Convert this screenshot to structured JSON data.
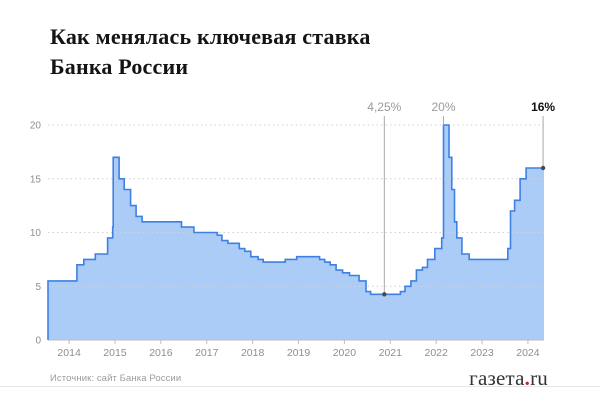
{
  "header": {
    "title_line1": "Как менялась ключевая ставка",
    "title_line2": "Банка России"
  },
  "footer": {
    "source": "Источник: сайт Банка России",
    "logo_name": "газета",
    "logo_dot": ".",
    "logo_domain": "ru"
  },
  "colors": {
    "line_blue": "#3f80e4",
    "fill_blue": "#aaccf7",
    "grid_gray": "#d2d2d2",
    "axis_gray": "#bdbdbd",
    "tick_label_gray": "#8e8e8e",
    "annotation_gray": "#9a9a9a",
    "annotation_line_gray": "#a9a9a9",
    "annotation_dot": "#4a4a4a",
    "emphasis_black": "#111111",
    "logo_dot_red": "#cc2127"
  },
  "chart_data": {
    "type": "area",
    "step": true,
    "title": "Как менялась ключевая ставка Банка России",
    "unit": "%",
    "xlabel": "",
    "ylabel": "",
    "ylim": [
      0,
      20
    ],
    "y_ticks": [
      0,
      5,
      10,
      15,
      20
    ],
    "x_ticks": [
      2014,
      2015,
      2016,
      2017,
      2018,
      2019,
      2020,
      2021,
      2022,
      2023,
      2024
    ],
    "x_range": [
      2013.54,
      2024.35
    ],
    "grid": "dotted-horizontal",
    "legend": "none",
    "series": [
      {
        "name": "Ключевая ставка Банка России, %",
        "points": [
          [
            2013.54,
            5.5
          ],
          [
            2014.17,
            7.0
          ],
          [
            2014.32,
            7.5
          ],
          [
            2014.57,
            8.0
          ],
          [
            2014.84,
            9.5
          ],
          [
            2014.95,
            10.5
          ],
          [
            2014.96,
            17.0
          ],
          [
            2015.09,
            15.0
          ],
          [
            2015.2,
            14.0
          ],
          [
            2015.34,
            12.5
          ],
          [
            2015.46,
            11.5
          ],
          [
            2015.59,
            11.0
          ],
          [
            2016.45,
            10.5
          ],
          [
            2016.72,
            10.0
          ],
          [
            2017.23,
            9.75
          ],
          [
            2017.33,
            9.25
          ],
          [
            2017.46,
            9.0
          ],
          [
            2017.71,
            8.5
          ],
          [
            2017.83,
            8.25
          ],
          [
            2017.96,
            7.75
          ],
          [
            2018.12,
            7.5
          ],
          [
            2018.23,
            7.25
          ],
          [
            2018.71,
            7.5
          ],
          [
            2018.96,
            7.75
          ],
          [
            2019.46,
            7.5
          ],
          [
            2019.57,
            7.25
          ],
          [
            2019.69,
            7.0
          ],
          [
            2019.82,
            6.5
          ],
          [
            2019.96,
            6.25
          ],
          [
            2020.11,
            6.0
          ],
          [
            2020.32,
            5.5
          ],
          [
            2020.47,
            4.5
          ],
          [
            2020.57,
            4.25
          ],
          [
            2021.22,
            4.5
          ],
          [
            2021.32,
            5.0
          ],
          [
            2021.45,
            5.5
          ],
          [
            2021.57,
            6.5
          ],
          [
            2021.7,
            6.75
          ],
          [
            2021.81,
            7.5
          ],
          [
            2021.97,
            8.5
          ],
          [
            2022.12,
            9.5
          ],
          [
            2022.16,
            20.0
          ],
          [
            2022.28,
            17.0
          ],
          [
            2022.34,
            14.0
          ],
          [
            2022.4,
            11.0
          ],
          [
            2022.45,
            9.5
          ],
          [
            2022.56,
            8.0
          ],
          [
            2022.72,
            7.5
          ],
          [
            2023.56,
            8.5
          ],
          [
            2023.62,
            12.0
          ],
          [
            2023.71,
            13.0
          ],
          [
            2023.83,
            15.0
          ],
          [
            2023.96,
            16.0
          ]
        ]
      }
    ],
    "annotations": [
      {
        "label": "4,25%",
        "x": 2020.87,
        "value": 4.25,
        "dot": true,
        "emphasis": false
      },
      {
        "label": "20%",
        "x": 2022.16,
        "value": 20,
        "dot": false,
        "emphasis": false
      },
      {
        "label": "16%",
        "x": 2024.33,
        "value": 16,
        "dot": true,
        "emphasis": true
      }
    ]
  }
}
